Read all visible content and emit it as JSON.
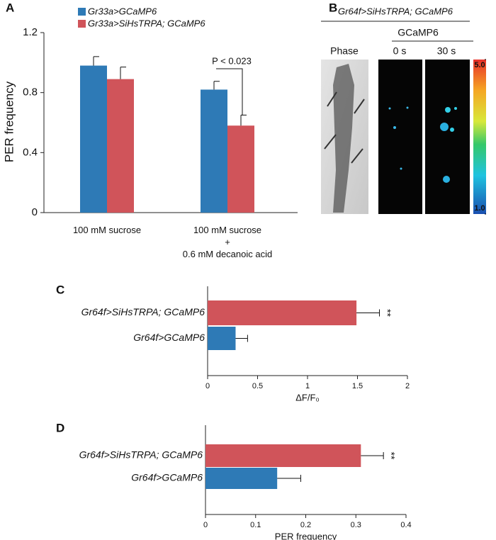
{
  "chart_data": [
    {
      "panel": "A",
      "type": "bar",
      "ylabel": "PER frequency",
      "categories": [
        "100 mM sucrose",
        "100 mM sucrose\n+\n0.6 mM decanoic acid"
      ],
      "series": [
        {
          "name": "Gr33a>GCaMP6",
          "color": "#2e7ab6",
          "values": [
            0.98,
            0.82
          ],
          "errors": [
            0.06,
            0.055
          ]
        },
        {
          "name": "Gr33a>SiHsTRPA; GCaMP6",
          "color": "#d0545a",
          "values": [
            0.89,
            0.58
          ],
          "errors": [
            0.08,
            0.07
          ]
        }
      ],
      "ylim": [
        0,
        1.2
      ],
      "yticks": [
        0,
        0.4,
        0.8,
        1.2
      ],
      "annotation": "P < 0.023"
    },
    {
      "panel": "B",
      "type": "image",
      "title": "Gr64f>SiHsTRPA; GCaMP6",
      "subtitle": "GCaMP6",
      "labels": [
        "Phase",
        "0 s",
        "30 s"
      ],
      "colorbar_ticks": [
        {
          "value": 1,
          "label": "1.0"
        },
        {
          "value": 5,
          "label": "5.0"
        }
      ],
      "colorbar_lim": [
        1,
        5
      ]
    },
    {
      "panel": "C",
      "type": "hbar",
      "xlabel": "ΔF/F₀",
      "categories": [
        "Gr64f>SiHsTRPA; GCaMP6",
        "Gr64f>GCaMP6"
      ],
      "values": [
        1.49,
        0.28
      ],
      "errors": [
        0.23,
        0.12
      ],
      "colors": [
        "#d0545a",
        "#2e7ab6"
      ],
      "annotation": "**",
      "xlim": [
        0,
        2
      ],
      "xticks": [
        0,
        0.5,
        1,
        1.5,
        2
      ]
    },
    {
      "panel": "D",
      "type": "hbar",
      "xlabel": "PER frequency",
      "categories": [
        "Gr64f>SiHsTRPA; GCaMP6",
        "Gr64f>GCaMP6"
      ],
      "values": [
        0.31,
        0.143
      ],
      "errors": [
        0.045,
        0.047
      ],
      "colors": [
        "#d0545a",
        "#2e7ab6"
      ],
      "annotation": "**",
      "xlim": [
        0,
        0.4
      ],
      "xticks": [
        0,
        0.1,
        0.2,
        0.3,
        0.4
      ]
    }
  ]
}
